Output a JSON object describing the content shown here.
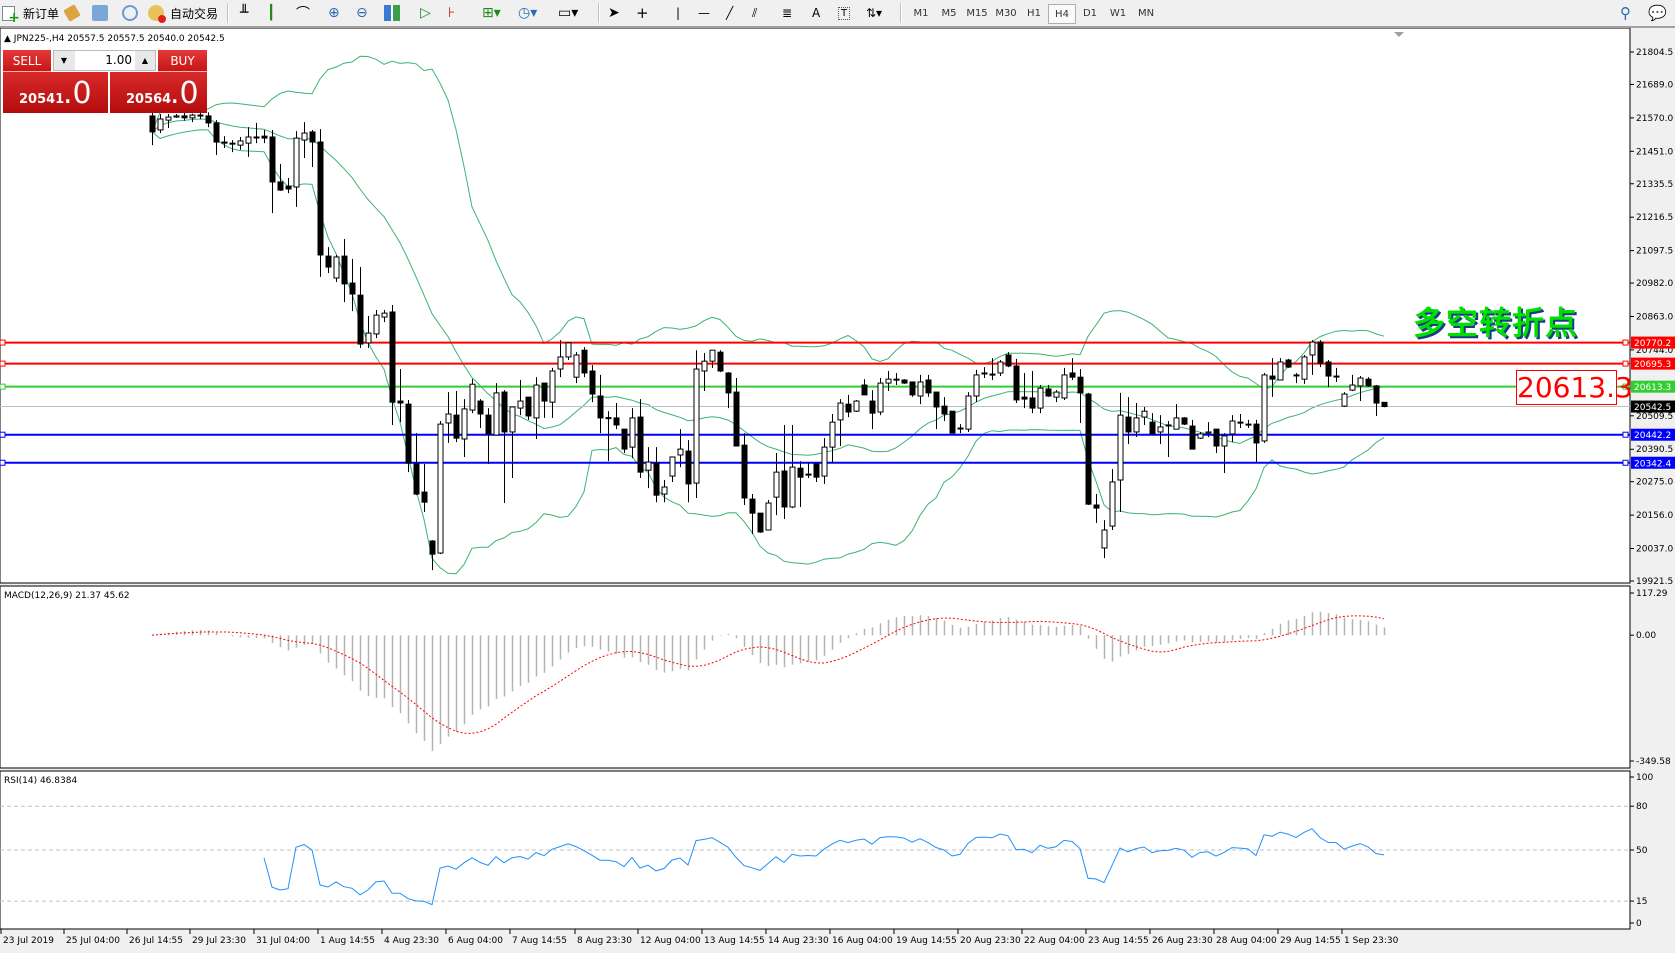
{
  "toolbar": {
    "new_order_label": "新订单",
    "auto_trading_label": "自动交易",
    "timeframes": [
      "M1",
      "M5",
      "M15",
      "M30",
      "H1",
      "H4",
      "D1",
      "W1",
      "MN"
    ],
    "active_timeframe": "H4"
  },
  "chart": {
    "symbol_header": "JPN225-,H4",
    "ohlc_header": "20557.5 20557.5 20540.0 20542.5"
  },
  "trade_panel": {
    "sell_label": "SELL",
    "buy_label": "BUY",
    "lot": "1.00",
    "sell_price_main": "20541",
    "sell_price_frac": ".0",
    "buy_price_main": "20564",
    "buy_price_frac": ".0"
  },
  "annotation": {
    "text": "多空转折点",
    "price_box": "20613.3"
  },
  "price_axis": {
    "ticks": [
      "21804.5",
      "21689.0",
      "21570.0",
      "21451.0",
      "21335.5",
      "21216.5",
      "21097.5",
      "20982.0",
      "20863.0",
      "20744.0",
      "20509.5",
      "20390.5",
      "20275.0",
      "20156.0",
      "20037.0",
      "19921.5"
    ]
  },
  "levels": [
    {
      "price": 20770.2,
      "label": "20770.2",
      "color": "#ff0000"
    },
    {
      "price": 20695.3,
      "label": "20695.3",
      "color": "#ff0000"
    },
    {
      "price": 20613.3,
      "label": "20613.3",
      "color": "#32cd32"
    },
    {
      "price": 20442.2,
      "label": "20442.2",
      "color": "#0000ff"
    },
    {
      "price": 20342.4,
      "label": "20342.4",
      "color": "#0000ff"
    }
  ],
  "bid": {
    "price": 20542.5,
    "label": "20542.5"
  },
  "macd": {
    "label": "MACD(12,26,9) 21.37 45.62",
    "axis": [
      {
        "v": 117.29,
        "t": "117.29"
      },
      {
        "v": 0,
        "t": "0.00"
      },
      {
        "v": -349.58,
        "t": "-349.58"
      }
    ]
  },
  "rsi": {
    "label": "RSI(14) 46.8384",
    "axis": [
      {
        "v": 100,
        "t": "100"
      },
      {
        "v": 80,
        "t": "80"
      },
      {
        "v": 50,
        "t": "50"
      },
      {
        "v": 15,
        "t": "15"
      },
      {
        "v": 0,
        "t": "0"
      }
    ],
    "levels": [
      80,
      50,
      15
    ]
  },
  "time_axis": {
    "labels": [
      "23 Jul 2019",
      "25 Jul 04:00",
      "26 Jul 14:55",
      "29 Jul 23:30",
      "31 Jul 04:00",
      "1 Aug 14:55",
      "4 Aug 23:30",
      "6 Aug 04:00",
      "7 Aug 14:55",
      "8 Aug 23:30",
      "12 Aug 04:00",
      "13 Aug 14:55",
      "14 Aug 23:30",
      "16 Aug 04:00",
      "19 Aug 14:55",
      "20 Aug 23:30",
      "22 Aug 04:00",
      "23 Aug 14:55",
      "26 Aug 23:30",
      "28 Aug 04:00",
      "29 Aug 14:55",
      "1 Sep 23:30"
    ]
  },
  "colors": {
    "bands": "#3cb371",
    "macd_hist": "#b4b4b4",
    "macd_signal": "#ff0000",
    "rsi_line": "#1e90ff",
    "bid_line": "#c0c0c0"
  },
  "chart_data": {
    "type": "candlestick",
    "symbol": "JPN225-",
    "timeframe": "H4",
    "ylim": [
      19921.5,
      21804.5
    ],
    "indicators": [
      "Bollinger Bands(20,2)",
      "MACD(12,26,9)",
      "RSI(14)"
    ],
    "candles_ohlc": [
      [
        21577,
        21591,
        21473,
        21520
      ],
      [
        21527,
        21584,
        21516,
        21566
      ],
      [
        21562,
        21584,
        21534,
        21573
      ],
      [
        21573,
        21584,
        21570,
        21577
      ],
      [
        21577,
        21590,
        21560,
        21570
      ],
      [
        21570,
        21585,
        21555,
        21580
      ],
      [
        21580,
        21595,
        21565,
        21577
      ],
      [
        21577,
        21590,
        21537,
        21552
      ],
      [
        21552,
        21562,
        21438,
        21484
      ],
      [
        21484,
        21505,
        21463,
        21480
      ],
      [
        21480,
        21491,
        21448,
        21477
      ],
      [
        21473,
        21502,
        21456,
        21488
      ],
      [
        21480,
        21537,
        21431,
        21502
      ],
      [
        21502,
        21552,
        21480,
        21501
      ],
      [
        21505,
        21527,
        21480,
        21498
      ],
      [
        21502,
        21527,
        21231,
        21342
      ],
      [
        21342,
        21406,
        21310,
        21313
      ],
      [
        21327,
        21356,
        21302,
        21317
      ],
      [
        21324,
        21523,
        21253,
        21498
      ],
      [
        21491,
        21555,
        21427,
        21516
      ],
      [
        21520,
        21527,
        21395,
        21484
      ],
      [
        21484,
        21530,
        21004,
        21082
      ],
      [
        21078,
        21110,
        21018,
        21039
      ],
      [
        21000,
        21082,
        20986,
        21075
      ],
      [
        21078,
        21139,
        20914,
        20979
      ],
      [
        20982,
        21068,
        20882,
        20943
      ],
      [
        20939,
        21039,
        20751,
        20765
      ],
      [
        20769,
        20865,
        20751,
        20804
      ],
      [
        20801,
        20886,
        20786,
        20868
      ],
      [
        20861,
        20886,
        20843,
        20875
      ],
      [
        20879,
        20904,
        20477,
        20558
      ],
      [
        20562,
        20676,
        20487,
        20555
      ],
      [
        20551,
        20566,
        20309,
        20341
      ],
      [
        20338,
        20448,
        20227,
        20231
      ],
      [
        20238,
        20338,
        20167,
        20202
      ],
      [
        20064,
        20067,
        19960,
        20017
      ],
      [
        20021,
        20491,
        20017,
        20480
      ],
      [
        20484,
        20594,
        20413,
        20516
      ],
      [
        20512,
        20598,
        20416,
        20430
      ],
      [
        20427,
        20569,
        20363,
        20534
      ],
      [
        20530,
        20640,
        20519,
        20622
      ],
      [
        20562,
        20569,
        20466,
        20516
      ],
      [
        20512,
        20537,
        20338,
        20445
      ],
      [
        20441,
        20626,
        20441,
        20591
      ],
      [
        20594,
        20601,
        20199,
        20452
      ],
      [
        20452,
        20541,
        20288,
        20541
      ],
      [
        20537,
        20637,
        20512,
        20562
      ],
      [
        20576,
        20576,
        20495,
        20509
      ],
      [
        20502,
        20647,
        20427,
        20619
      ],
      [
        20626,
        20626,
        20502,
        20562
      ],
      [
        20558,
        20680,
        20502,
        20669
      ],
      [
        20676,
        20779,
        20647,
        20719
      ],
      [
        20719,
        20772,
        20708,
        20769
      ],
      [
        20647,
        20736,
        20626,
        20726
      ],
      [
        20743,
        20754,
        20647,
        20662
      ],
      [
        20669,
        20690,
        20558,
        20587
      ],
      [
        20580,
        20655,
        20448,
        20502
      ],
      [
        20503,
        20526,
        20348,
        20500
      ],
      [
        20502,
        20555,
        20462,
        20477
      ],
      [
        20462,
        20462,
        20377,
        20391
      ],
      [
        20398,
        20537,
        20359,
        20502
      ],
      [
        20505,
        20569,
        20288,
        20309
      ],
      [
        20316,
        20398,
        20252,
        20345
      ],
      [
        20341,
        20398,
        20202,
        20227
      ],
      [
        20231,
        20281,
        20202,
        20256
      ],
      [
        20295,
        20363,
        20274,
        20363
      ],
      [
        20370,
        20462,
        20327,
        20391
      ],
      [
        20384,
        20423,
        20202,
        20267
      ],
      [
        20270,
        20743,
        20217,
        20676
      ],
      [
        20669,
        20733,
        20598,
        20704
      ],
      [
        20704,
        20743,
        20680,
        20743
      ],
      [
        20736,
        20743,
        20665,
        20669
      ],
      [
        20662,
        20665,
        20537,
        20591
      ],
      [
        20594,
        20644,
        20402,
        20402
      ],
      [
        20405,
        20448,
        20192,
        20217
      ],
      [
        20213,
        20231,
        20089,
        20163
      ],
      [
        20163,
        20163,
        20093,
        20096
      ],
      [
        20103,
        20210,
        20103,
        20199
      ],
      [
        20220,
        20377,
        20156,
        20309
      ],
      [
        20313,
        20477,
        20142,
        20185
      ],
      [
        20185,
        20477,
        20181,
        20327
      ],
      [
        20323,
        20348,
        20185,
        20291
      ],
      [
        20302,
        20345,
        20288,
        20300
      ],
      [
        20338,
        20341,
        20274,
        20291
      ],
      [
        20295,
        20430,
        20267,
        20398
      ],
      [
        20398,
        20516,
        20341,
        20487
      ],
      [
        20495,
        20569,
        20402,
        20555
      ],
      [
        20551,
        20584,
        20505,
        20523
      ],
      [
        20526,
        20566,
        20523,
        20562
      ],
      [
        20619,
        20640,
        20584,
        20584
      ],
      [
        20562,
        20601,
        20462,
        20519
      ],
      [
        20523,
        20644,
        20512,
        20626
      ],
      [
        20626,
        20669,
        20598,
        20640
      ],
      [
        20640,
        20662,
        20619,
        20638
      ],
      [
        20637,
        20640,
        20623,
        20626
      ],
      [
        20630,
        20630,
        20577,
        20584
      ],
      [
        20580,
        20655,
        20551,
        20630
      ],
      [
        20637,
        20655,
        20577,
        20591
      ],
      [
        20594,
        20594,
        20462,
        20541
      ],
      [
        20544,
        20576,
        20491,
        20516
      ],
      [
        20526,
        20526,
        20448,
        20448
      ],
      [
        20466,
        20480,
        20448,
        20464
      ],
      [
        20462,
        20594,
        20452,
        20580
      ],
      [
        20580,
        20673,
        20558,
        20655
      ],
      [
        20662,
        20683,
        20644,
        20661
      ],
      [
        20658,
        20715,
        20637,
        20655
      ],
      [
        20662,
        20708,
        20651,
        20701
      ],
      [
        20726,
        20736,
        20683,
        20687
      ],
      [
        20687,
        20712,
        20555,
        20566
      ],
      [
        20576,
        20662,
        20537,
        20569
      ],
      [
        20573,
        20669,
        20519,
        20537
      ],
      [
        20537,
        20619,
        20519,
        20608
      ],
      [
        20605,
        20619,
        20577,
        20580
      ],
      [
        20576,
        20601,
        20558,
        20594
      ],
      [
        20573,
        20680,
        20566,
        20655
      ],
      [
        20662,
        20715,
        20637,
        20647
      ],
      [
        20647,
        20676,
        20484,
        20591
      ],
      [
        20587,
        20591,
        20192,
        20195
      ],
      [
        20192,
        20231,
        20128,
        20181
      ],
      [
        20039,
        20138,
        20003,
        20103
      ],
      [
        20117,
        20320,
        20103,
        20274
      ],
      [
        20281,
        20591,
        20167,
        20512
      ],
      [
        20505,
        20576,
        20409,
        20452
      ],
      [
        20452,
        20555,
        20434,
        20502
      ],
      [
        20505,
        20541,
        20477,
        20526
      ],
      [
        20487,
        20519,
        20445,
        20445
      ],
      [
        20452,
        20512,
        20409,
        20470
      ],
      [
        20477,
        20491,
        20363,
        20476
      ],
      [
        20462,
        20551,
        20462,
        20502
      ],
      [
        20502,
        20505,
        20477,
        20480
      ],
      [
        20473,
        20495,
        20391,
        20391
      ],
      [
        20430,
        20452,
        20427,
        20445
      ],
      [
        20448,
        20487,
        20434,
        20452
      ],
      [
        20462,
        20462,
        20377,
        20402
      ],
      [
        20402,
        20448,
        20306,
        20438
      ],
      [
        20445,
        20512,
        20416,
        20491
      ],
      [
        20487,
        20516,
        20466,
        20486
      ],
      [
        20480,
        20495,
        20466,
        20479
      ],
      [
        20480,
        20495,
        20345,
        20413
      ],
      [
        20420,
        20662,
        20413,
        20655
      ],
      [
        20651,
        20715,
        20577,
        20640
      ],
      [
        20637,
        20715,
        20637,
        20701
      ],
      [
        20708,
        20712,
        20680,
        20683
      ],
      [
        20655,
        20662,
        20626,
        20654
      ],
      [
        20640,
        20726,
        20623,
        20719
      ],
      [
        20726,
        20779,
        20655,
        20772
      ],
      [
        20772,
        20779,
        20683,
        20697
      ],
      [
        20701,
        20708,
        20612,
        20651
      ],
      [
        20651,
        20680,
        20630,
        20650
      ],
      [
        20544,
        20594,
        20541,
        20587
      ],
      [
        20601,
        20655,
        20598,
        20619
      ],
      [
        20616,
        20651,
        20562,
        20644
      ],
      [
        20640,
        20647,
        20612,
        20616
      ],
      [
        20616,
        20619,
        20509,
        20555
      ],
      [
        20557.5,
        20557.5,
        20540.0,
        20542.5
      ]
    ]
  }
}
